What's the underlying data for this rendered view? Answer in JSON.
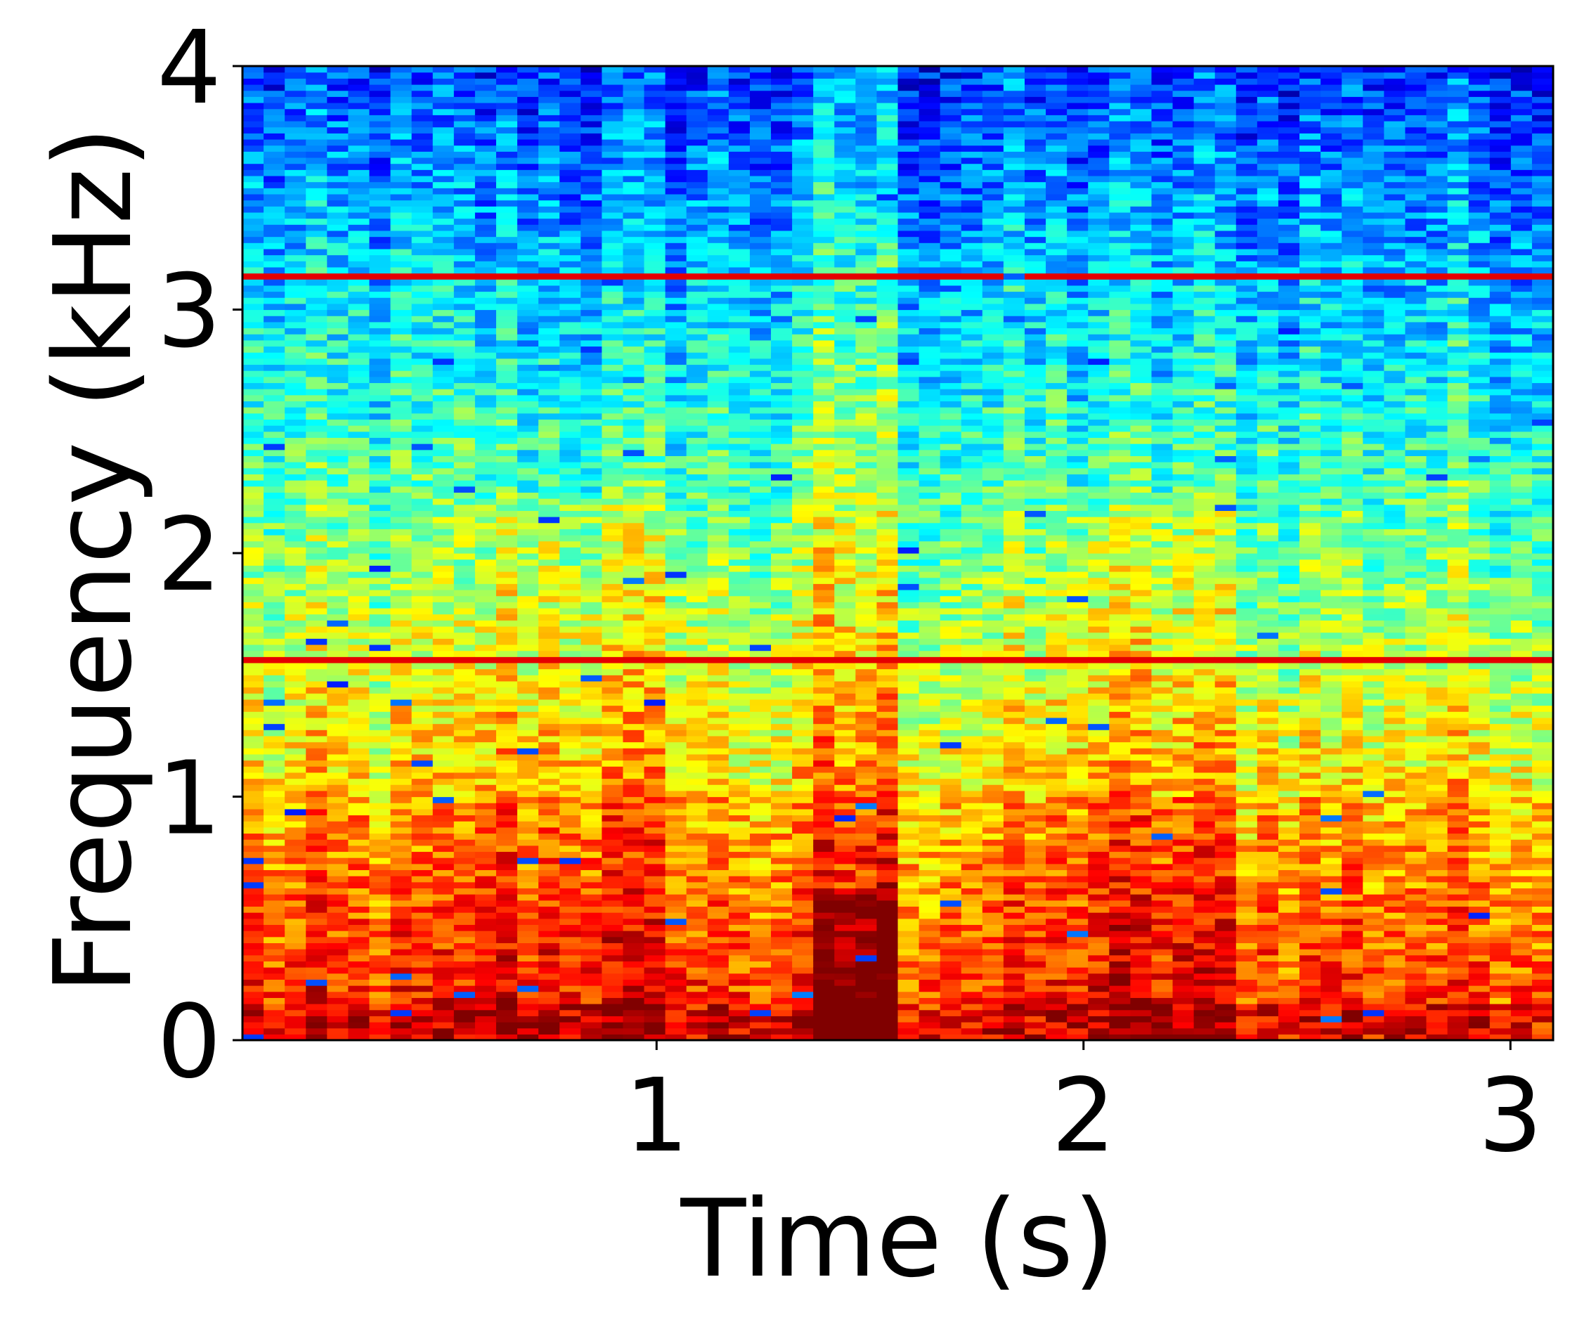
{
  "chart_data": {
    "type": "heatmap",
    "title": "",
    "xlabel": "Time (s)",
    "ylabel": "Frequency (kHz)",
    "xlim": [
      0.03,
      3.1
    ],
    "ylim": [
      0,
      4
    ],
    "x_ticks": [
      "1",
      "2",
      "3"
    ],
    "x_tick_values": [
      1,
      2,
      3
    ],
    "y_ticks": [
      "0",
      "1",
      "2",
      "3",
      "4"
    ],
    "y_tick_values": [
      0,
      1,
      2,
      3,
      4
    ],
    "colormap": "jet",
    "grid": false,
    "legend": "none",
    "time_bins": 62,
    "freq_bins": 160,
    "tonal_lines_khz": [
      3.13,
      1.57
    ],
    "transient_times_s": [
      1.4,
      1.52
    ],
    "energy_profile": {
      "low_band_khz": [
        0,
        1.0
      ],
      "mid_band_khz": [
        1.0,
        2.0
      ],
      "high_band_khz": [
        2.0,
        4.0
      ]
    },
    "colors": {
      "low": "#00bfff",
      "mid": "#ffff00",
      "high": "#ff2a00",
      "peak": "#a00000"
    }
  }
}
